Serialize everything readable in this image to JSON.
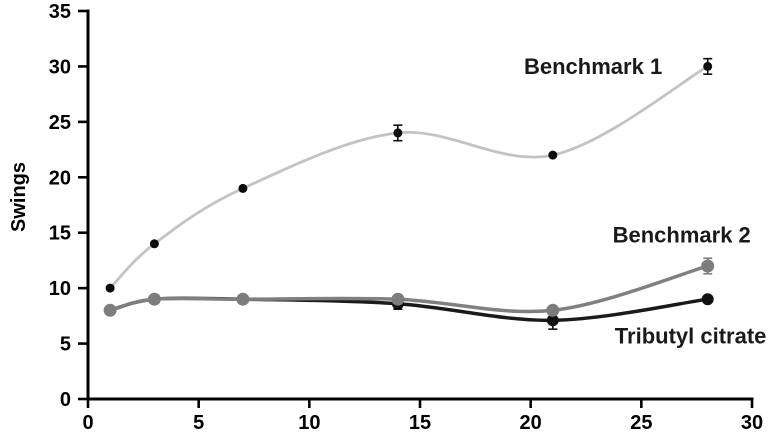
{
  "figure": {
    "background": "#ffffff",
    "axis_color": "#000000",
    "text_color": "#000000"
  },
  "chart_data": {
    "type": "line",
    "title": "",
    "xlabel": "",
    "ylabel": "Swings",
    "xlim": [
      0,
      30
    ],
    "ylim": [
      0,
      35
    ],
    "x_ticks": [
      0,
      5,
      10,
      15,
      20,
      25,
      30
    ],
    "y_ticks": [
      0,
      5,
      10,
      15,
      20,
      25,
      30,
      35
    ],
    "grid": false,
    "legend_position": "inline-annotations",
    "x": [
      1,
      3,
      7,
      14,
      21,
      28
    ],
    "series": [
      {
        "name": "Tributyl citrate",
        "values": [
          8,
          9,
          9,
          8.6,
          7.1,
          9
        ],
        "errors": [
          0,
          0,
          0,
          0.5,
          0.8,
          0
        ],
        "line_color": "#1a1a1a",
        "marker_color": "#111111",
        "line_width": 3.5,
        "marker_radius": 6,
        "label": {
          "text": "Tributyl citrate",
          "x": 23.8,
          "y": 5.0
        }
      },
      {
        "name": "Benchmark 2",
        "values": [
          8,
          9,
          9,
          9,
          8,
          12
        ],
        "errors": [
          0,
          0,
          0,
          0,
          0,
          0.7
        ],
        "line_color": "#808080",
        "marker_color": "#7d7d7d",
        "line_width": 3.5,
        "marker_radius": 6.5,
        "label": {
          "text": "Benchmark 2",
          "x": 23.7,
          "y": 14.1
        }
      },
      {
        "name": "Benchmark 1",
        "values": [
          10,
          14,
          19,
          24,
          22,
          30
        ],
        "errors": [
          0,
          0,
          0,
          0.7,
          0,
          0.7
        ],
        "line_color": "#c3c3c3",
        "marker_color": "#0d0d0d",
        "line_width": 2.8,
        "marker_radius": 4.5,
        "label": {
          "text": "Benchmark 1",
          "x": 19.7,
          "y": 29.3
        }
      }
    ]
  }
}
